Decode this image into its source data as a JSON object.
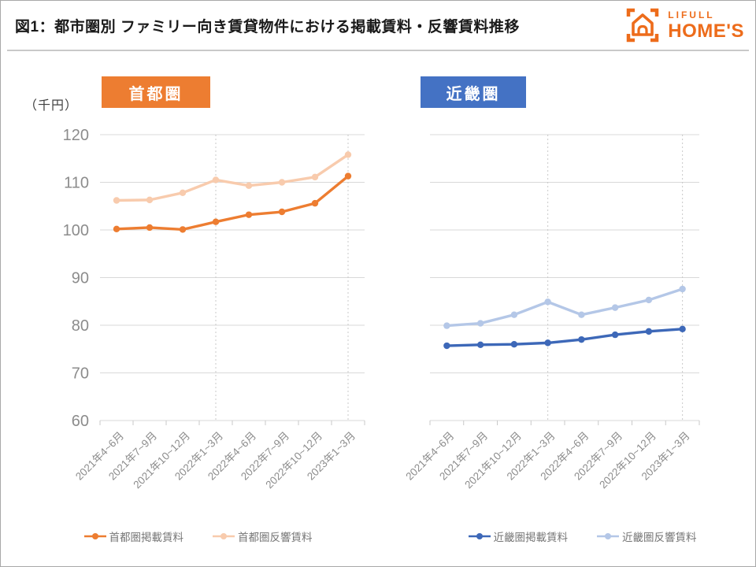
{
  "header": {
    "title": "図1：都市圏別 ファミリー向き賃貸物件における掲載賃料・反響賃料推移",
    "logo": {
      "brand_top": "LIFULL",
      "brand_bottom": "HOME'S",
      "color": "#ED6C1B"
    }
  },
  "y_axis_unit": "（千円）",
  "chart_data": [
    {
      "type": "line",
      "title": "首都圏",
      "badge_color": "#ED7D31",
      "categories": [
        "2021年4~6月",
        "2021年7~9月",
        "2021年10~12月",
        "2022年1~3月",
        "2022年4~6月",
        "2022年7~9月",
        "2022年10~12月",
        "2023年1~3月"
      ],
      "series": [
        {
          "name": "首都圏掲載賃料",
          "color": "#ED7D31",
          "values": [
            100.2,
            100.5,
            100.1,
            101.7,
            103.2,
            103.8,
            105.6,
            111.3
          ]
        },
        {
          "name": "首都圏反響賃料",
          "color": "#F8CBAD",
          "values": [
            106.2,
            106.3,
            107.8,
            110.5,
            109.3,
            110.0,
            111.1,
            115.8
          ]
        }
      ],
      "ylim": [
        60,
        120
      ],
      "yticks": [
        120,
        110,
        100,
        90,
        80,
        70,
        60
      ],
      "show_y_labels": true,
      "dashed_x_indices": [
        3,
        7
      ],
      "grid": true,
      "legend_position": "bottom"
    },
    {
      "type": "line",
      "title": "近畿圏",
      "badge_color": "#4472C4",
      "categories": [
        "2021年4~6月",
        "2021年7~9月",
        "2021年10~12月",
        "2022年1~3月",
        "2022年4~6月",
        "2022年7~9月",
        "2022年10~12月",
        "2023年1~3月"
      ],
      "series": [
        {
          "name": "近畿圏掲載賃料",
          "color": "#3D68B8",
          "values": [
            75.7,
            75.9,
            76.0,
            76.3,
            77.0,
            78.0,
            78.7,
            79.2
          ]
        },
        {
          "name": "近畿圏反響賃料",
          "color": "#B4C7E7",
          "values": [
            79.9,
            80.4,
            82.2,
            84.9,
            82.2,
            83.7,
            85.3,
            87.6
          ]
        }
      ],
      "ylim": [
        60,
        120
      ],
      "yticks": [
        120,
        110,
        100,
        90,
        80,
        70,
        60
      ],
      "show_y_labels": false,
      "dashed_x_indices": [
        3,
        7
      ],
      "grid": true,
      "legend_position": "bottom"
    }
  ]
}
